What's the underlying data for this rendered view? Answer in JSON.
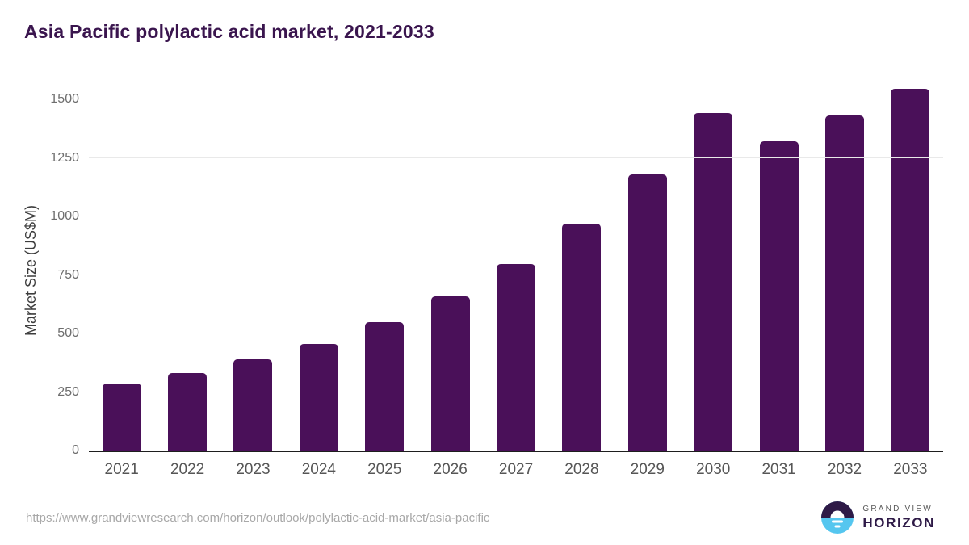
{
  "title": "Asia Pacific polylactic acid market, 2021-2033",
  "chart_data": {
    "type": "bar",
    "title": "Asia Pacific polylactic acid market, 2021-2033",
    "categories": [
      "2021",
      "2022",
      "2023",
      "2024",
      "2025",
      "2026",
      "2027",
      "2028",
      "2029",
      "2030",
      "2031",
      "2032",
      "2033"
    ],
    "values": [
      285,
      330,
      390,
      455,
      550,
      660,
      795,
      970,
      1180,
      1440,
      1320,
      1430,
      1545
    ],
    "xlabel": "",
    "ylabel": "Market Size (US$M)",
    "ylim": [
      0,
      1500
    ],
    "yticks": [
      0,
      250,
      500,
      750,
      1000,
      1250,
      1500
    ],
    "grid": "horizontal",
    "legend": "none",
    "bar_color": "#4a1059"
  },
  "colors": {
    "title": "#3a154e",
    "bar": "#4a1059",
    "gridline": "#e9e9e9",
    "axis_line": "#1e1e1e",
    "y_tick_text": "#6e6e6e",
    "x_tick_text": "#565656",
    "source_text": "#a8a8a8",
    "logo_purple": "#2e1a47",
    "logo_blue": "#55c6ef"
  },
  "footer": {
    "source_url": "https://www.grandviewresearch.com/horizon/outlook/polylactic-acid-market/asia-pacific",
    "logo": {
      "line1": "GRAND VIEW",
      "line2": "HORIZON"
    }
  }
}
